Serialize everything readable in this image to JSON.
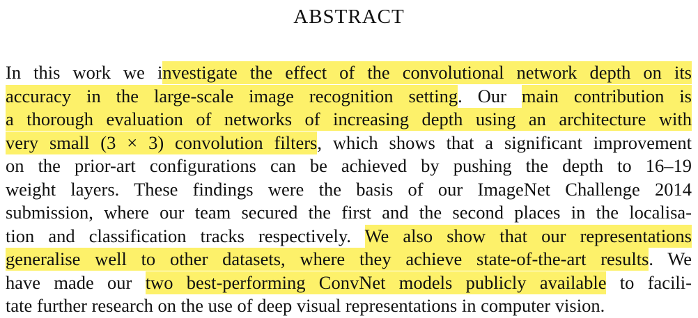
{
  "heading": "ABSTRACT",
  "highlight_color": "#fdf16a",
  "lines": [
    [
      {
        "t": "In this work we i",
        "hl": false
      },
      {
        "t": "nvestigate the effect of the convolutional network depth on its",
        "hl": true
      }
    ],
    [
      {
        "t": "accuracy in the large-scale image recognition setting",
        "hl": true
      },
      {
        "t": ".  Our ",
        "hl": false
      },
      {
        "t": "main contribution is",
        "hl": true
      }
    ],
    [
      {
        "t": "a thorough evaluation of networks of increasing depth using an architecture with",
        "hl": true
      }
    ],
    [
      {
        "t": "very small (3 × 3) convolution filters",
        "hl": true
      },
      {
        "t": ", which shows that a significant improvement",
        "hl": false
      }
    ],
    [
      {
        "t": "on the prior-art configurations can be achieved by pushing the depth to 16–19",
        "hl": false
      }
    ],
    [
      {
        "t": "weight layers.  These findings were the basis of our ImageNet Challenge 2014",
        "hl": false
      }
    ],
    [
      {
        "t": "submission, where our team secured the first and the second places in the localisa-",
        "hl": false
      }
    ],
    [
      {
        "t": "tion and classification tracks respectively.  ",
        "hl": false
      },
      {
        "t": "We also show that our representations",
        "hl": true
      }
    ],
    [
      {
        "t": "generalise well to other datasets, where they achieve state-of-the-art results",
        "hl": true
      },
      {
        "t": ".  We",
        "hl": false
      }
    ],
    [
      {
        "t": "have made our ",
        "hl": false
      },
      {
        "t": "two best-performing ConvNet models publicly available",
        "hl": true
      },
      {
        "t": " to facili-",
        "hl": false
      }
    ],
    [
      {
        "t": "tate further research on the use of deep visual representations in computer vision.",
        "hl": false
      }
    ]
  ]
}
